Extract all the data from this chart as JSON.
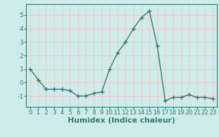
{
  "x": [
    0,
    1,
    2,
    3,
    4,
    5,
    6,
    7,
    8,
    9,
    10,
    11,
    12,
    13,
    14,
    15,
    16,
    17,
    18,
    19,
    20,
    21,
    22,
    23
  ],
  "y": [
    1.0,
    0.2,
    -0.5,
    -0.5,
    -0.5,
    -0.6,
    -1.0,
    -1.0,
    -0.8,
    -0.7,
    1.0,
    2.2,
    3.0,
    4.0,
    4.8,
    5.3,
    2.7,
    -1.35,
    -1.1,
    -1.1,
    -0.9,
    -1.1,
    -1.1,
    -1.2
  ],
  "line_color": "#2d7a6e",
  "marker": "+",
  "marker_size": 4,
  "line_width": 1.0,
  "bg_color": "#ceecea",
  "grid_color": "#f0c8c8",
  "xlabel": "Humidex (Indice chaleur)",
  "xlabel_fontsize": 8,
  "xlabel_fontweight": "bold",
  "ylim": [
    -1.8,
    5.8
  ],
  "xlim": [
    -0.5,
    23.5
  ],
  "yticks": [
    -1,
    0,
    1,
    2,
    3,
    4,
    5
  ],
  "xtick_labels": [
    "0",
    "1",
    "2",
    "3",
    "4",
    "5",
    "6",
    "7",
    "8",
    "9",
    "10",
    "11",
    "12",
    "13",
    "14",
    "15",
    "16",
    "17",
    "18",
    "19",
    "20",
    "21",
    "22",
    "23"
  ],
  "tick_fontsize": 6.5,
  "axis_color": "#2d7a6e"
}
